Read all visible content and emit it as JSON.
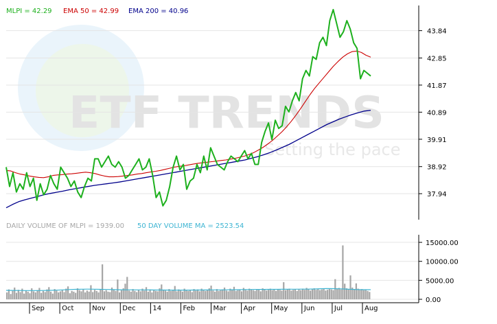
{
  "watermark": {
    "brand": "ETF TRENDS",
    "tagline": "Setting the pace"
  },
  "legend": {
    "price": "MLPI = 42.29",
    "ema50": "EMA 50 = 42.99",
    "ema200": "EMA 200 = 40.96",
    "volume": "DAILY VOLUME OF MLPI = 1939.00",
    "volume_ma": "50 DAY VOLUME MA = 2523.54"
  },
  "colors": {
    "price": "#1db01d",
    "ema50": "#cc0000",
    "ema200": "#00008b",
    "volume": "#a6a6a6",
    "volume_ma": "#3cb4d2",
    "grid": "#e4e4e4",
    "axis": "#000000"
  },
  "chart_data": [
    {
      "type": "line",
      "title": "",
      "ylim": [
        37.0,
        44.75
      ],
      "y_ticks": [
        "37.94",
        "38.92",
        "39.91",
        "40.89",
        "41.87",
        "42.85",
        "43.84"
      ],
      "x_ticks": [
        "Sep",
        "Oct",
        "Nov",
        "Dec",
        "14",
        "Feb",
        "Mar",
        "Apr",
        "May",
        "Jun",
        "Jul",
        "Aug"
      ],
      "grid": true,
      "legend_position": "top-left",
      "series": [
        {
          "name": "MLPI",
          "values": [
            38.9,
            38.2,
            38.7,
            38.0,
            38.3,
            38.1,
            38.7,
            38.2,
            38.5,
            37.7,
            38.3,
            37.9,
            38.1,
            38.6,
            38.3,
            38.1,
            38.9,
            38.7,
            38.5,
            38.2,
            38.4,
            38.0,
            37.8,
            38.2,
            38.5,
            38.4,
            39.2,
            39.2,
            38.9,
            39.1,
            39.3,
            39.0,
            38.9,
            39.1,
            38.9,
            38.5,
            38.6,
            38.8,
            39.0,
            39.2,
            38.8,
            38.9,
            39.2,
            38.6,
            37.8,
            38.0,
            37.5,
            37.7,
            38.2,
            38.9,
            39.3,
            38.8,
            39.0,
            38.1,
            38.4,
            38.5,
            39.0,
            38.7,
            39.3,
            38.8,
            39.6,
            39.3,
            39.0,
            38.9,
            38.8,
            39.1,
            39.3,
            39.2,
            39.1,
            39.3,
            39.5,
            39.2,
            39.4,
            39.0,
            39.0,
            39.8,
            40.2,
            40.5,
            39.9,
            40.6,
            40.3,
            40.4,
            41.1,
            40.9,
            41.3,
            41.6,
            41.3,
            42.1,
            42.4,
            42.2,
            42.9,
            42.8,
            43.4,
            43.6,
            43.3,
            44.2,
            44.6,
            44.1,
            43.6,
            43.8,
            44.2,
            43.9,
            43.4,
            43.2,
            42.1,
            42.4,
            42.3,
            42.2
          ]
        },
        {
          "name": "EMA 50",
          "values": [
            38.78,
            38.76,
            38.7,
            38.65,
            38.62,
            38.58,
            38.55,
            38.53,
            38.52,
            38.55,
            38.6,
            38.62,
            38.63,
            38.65,
            38.66,
            38.68,
            38.7,
            38.72,
            38.7,
            38.67,
            38.62,
            38.58,
            38.55,
            38.55,
            38.56,
            38.58,
            38.6,
            38.62,
            38.65,
            38.67,
            38.7,
            38.73,
            38.75,
            38.78,
            38.82,
            38.86,
            38.9,
            38.93,
            38.95,
            38.98,
            39.01,
            39.04,
            39.06,
            39.08,
            39.1,
            39.12,
            39.14,
            39.16,
            39.19,
            39.22,
            39.26,
            39.3,
            39.36,
            39.43,
            39.52,
            39.62,
            39.74,
            39.87,
            40.02,
            40.18,
            40.36,
            40.56,
            40.78,
            41.02,
            41.27,
            41.52,
            41.75,
            41.95,
            42.15,
            42.35,
            42.55,
            42.72,
            42.88,
            43.0,
            43.08,
            43.1,
            43.05,
            42.95,
            42.88
          ]
        },
        {
          "name": "EMA 200",
          "values": [
            37.43,
            37.55,
            37.65,
            37.72,
            37.78,
            37.84,
            37.9,
            37.95,
            37.99,
            38.03,
            38.08,
            38.12,
            38.16,
            38.2,
            38.24,
            38.27,
            38.3,
            38.33,
            38.36,
            38.4,
            38.44,
            38.48,
            38.52,
            38.56,
            38.6,
            38.64,
            38.68,
            38.72,
            38.76,
            38.8,
            38.84,
            38.88,
            38.92,
            38.96,
            39.0,
            39.04,
            39.08,
            39.12,
            39.16,
            39.22,
            39.28,
            39.35,
            39.43,
            39.52,
            39.62,
            39.72,
            39.84,
            39.96,
            40.08,
            40.2,
            40.32,
            40.44,
            40.54,
            40.64,
            40.72,
            40.8,
            40.87,
            40.93,
            40.96
          ]
        }
      ]
    },
    {
      "type": "bar",
      "title": "",
      "ylim": [
        0,
        17000
      ],
      "y_ticks": [
        "0.00",
        "5000.00",
        "10000.00",
        "15000.00"
      ],
      "x_ticks": [
        "Sep",
        "Oct",
        "Nov",
        "Dec",
        "14",
        "Feb",
        "Mar",
        "Apr",
        "May",
        "Jun",
        "Jul",
        "Aug"
      ],
      "series": [
        {
          "name": "DAILY VOLUME OF MLPI",
          "values": [
            1800,
            2600,
            1400,
            2200,
            3100,
            1700,
            2500,
            1900,
            2800,
            1500,
            2300,
            2000,
            1600,
            2900,
            2100,
            1800,
            2400,
            3000,
            1700,
            2200,
            1900,
            2600,
            3200,
            2000,
            1500,
            2700,
            2300,
            1800,
            2100,
            2500,
            1900,
            2800,
            3400,
            1600,
            2200,
            2000,
            1700,
            2900,
            2400,
            2100,
            2600,
            1800,
            2300,
            2000,
            3700,
            1900,
            2500,
            2200,
            1800,
            2700,
            9200,
            2100,
            2400,
            2000,
            1900,
            3100,
            2600,
            2200,
            5200,
            1800,
            2400,
            2900,
            4100,
            5900,
            2300,
            2000,
            2700,
            2200,
            1900,
            2500,
            2100,
            2800,
            2300,
            3200,
            2000,
            2600,
            1800,
            2400,
            2200,
            2100,
            2900,
            3900,
            2500,
            2300,
            2000,
            2700,
            2200,
            2400,
            3500,
            2100,
            2600,
            2300,
            2000,
            2800,
            2500,
            2200,
            2400,
            1900,
            2700,
            2300,
            2600,
            2100,
            2800,
            2400,
            2200,
            2500,
            2900,
            3600,
            2300,
            2000,
            2700,
            2200,
            2400,
            2600,
            3100,
            2300,
            2100,
            2800,
            2500,
            3300,
            2200,
            2400,
            2600,
            2100,
            3000,
            2500,
            2300,
            2800,
            2600,
            2400,
            2200,
            2700,
            2500,
            2100,
            2900,
            2600,
            2300,
            2500,
            2800,
            2400,
            2600,
            2200,
            2700,
            2500,
            2300,
            4500,
            2400,
            2600,
            2800,
            2300,
            2500,
            2700,
            2200,
            2600,
            2400,
            2800,
            2500,
            3000,
            2700,
            2300,
            2600,
            2900,
            2500,
            2700,
            2400,
            2600,
            2800,
            2300,
            2500,
            2700,
            2600,
            2400,
            5300,
            2800,
            3000,
            2600,
            14200,
            4100,
            2900,
            2700,
            6300,
            3100,
            2600,
            4200,
            2800,
            2500,
            2700,
            2400,
            2600,
            2200,
            1939
          ]
        },
        {
          "name": "50 DAY VOLUME MA",
          "values": [
            2350,
            2330,
            2310,
            2300,
            2290,
            2300,
            2320,
            2350,
            2400,
            2480,
            2560,
            2620,
            2660,
            2670,
            2650,
            2620,
            2580,
            2550,
            2520,
            2500,
            2490,
            2480,
            2470,
            2460,
            2450,
            2440,
            2430,
            2420,
            2420,
            2430,
            2440,
            2450,
            2460,
            2470,
            2480,
            2500,
            2520,
            2540,
            2560,
            2580,
            2600,
            2610,
            2620,
            2630,
            2640,
            2650,
            2660,
            2670,
            2680,
            2720,
            2780,
            2820,
            2800,
            2760,
            2700,
            2620,
            2560,
            2530,
            2523.54
          ]
        }
      ]
    }
  ]
}
